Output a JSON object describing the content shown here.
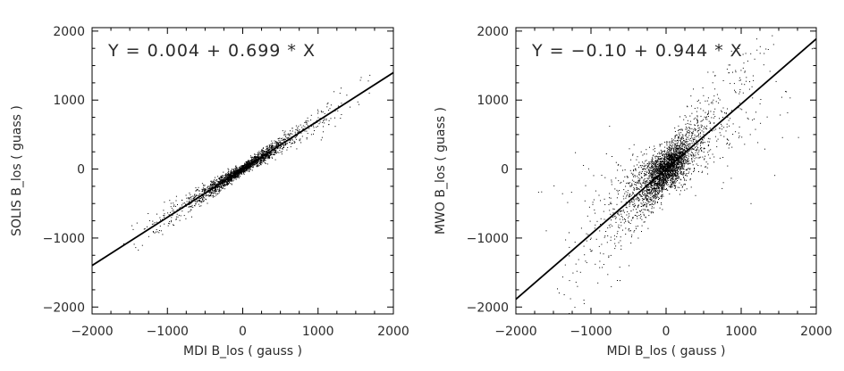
{
  "chart_data": [
    {
      "type": "scatter",
      "annotation": "Y = 0.004 + 0.699 * X",
      "xlabel": "MDI B_los ( gauss )",
      "ylabel": "SOLIS B_los ( guass )",
      "xlim": [
        -2000,
        2000
      ],
      "ylim": [
        -2100,
        2050
      ],
      "xticks": [
        -2000,
        -1000,
        0,
        1000,
        2000
      ],
      "yticks": [
        -2000,
        -1000,
        0,
        1000,
        2000
      ],
      "xtick_labels": [
        "−2000",
        "−1000",
        "0",
        "1000",
        "2000"
      ],
      "ytick_labels": [
        "−2000",
        "−1000",
        "0",
        "1000",
        "2000"
      ],
      "fit": {
        "intercept": 0.004,
        "slope": 0.699
      },
      "scatter_summary": {
        "slope": 0.699,
        "core_sigma_x": 280,
        "tail_sigma_x": 650,
        "spread_y": 70,
        "x_extent": [
          -1600,
          1850
        ]
      },
      "grid": false
    },
    {
      "type": "scatter",
      "annotation": "Y = −0.10 + 0.944 * X",
      "xlabel": "MDI B_los ( gauss )",
      "ylabel": "MWO B_los ( guass )",
      "xlim": [
        -2000,
        2000
      ],
      "ylim": [
        -2100,
        2050
      ],
      "xticks": [
        -2000,
        -1000,
        0,
        1000,
        2000
      ],
      "yticks": [
        -2000,
        -1000,
        0,
        1000,
        2000
      ],
      "xtick_labels": [
        "−2000",
        "−1000",
        "0",
        "1000",
        "2000"
      ],
      "ytick_labels": [
        "−2000",
        "−1000",
        "0",
        "1000",
        "2000"
      ],
      "fit": {
        "intercept": -0.1,
        "slope": 0.944
      },
      "scatter_summary": {
        "slope": 0.944,
        "core_sigma_x": 180,
        "tail_sigma_x": 600,
        "spread_y": 320,
        "x_extent": [
          -1700,
          2000
        ]
      },
      "grid": false
    }
  ]
}
